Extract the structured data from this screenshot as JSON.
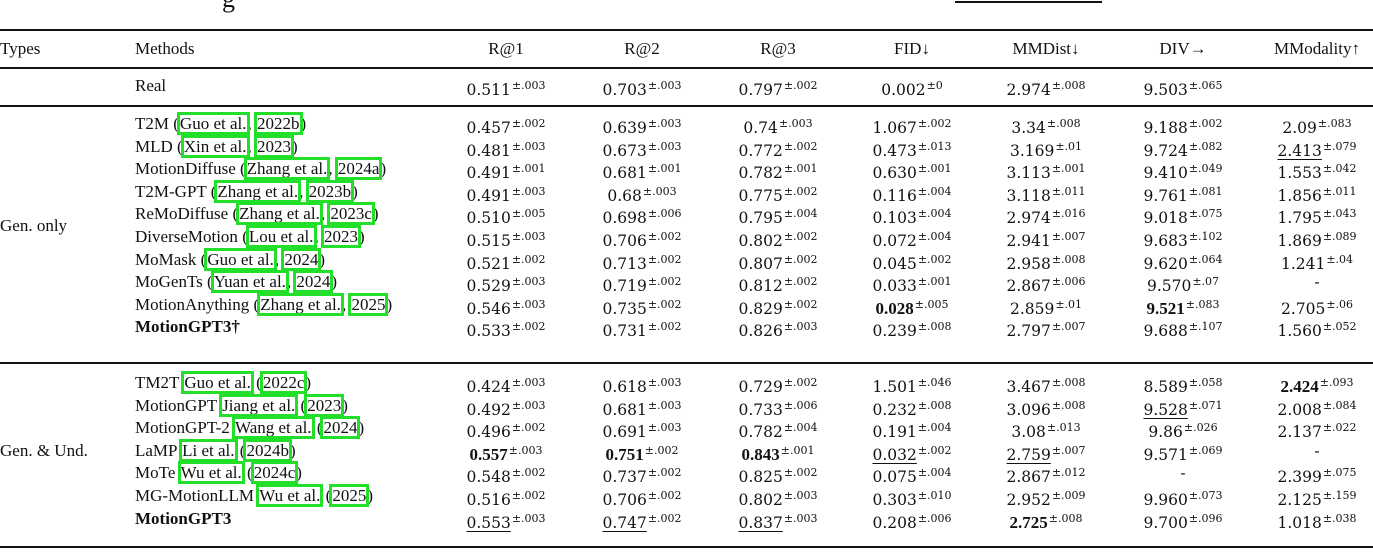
{
  "caption_fragment": "g",
  "columns": {
    "types": "Types",
    "methods": "Methods",
    "metrics": [
      "R@1",
      "R@2",
      "R@3",
      "FID↓",
      "MMDist↓",
      "DIV→",
      "MModality↑"
    ]
  },
  "real_row": {
    "method": "Real",
    "values": [
      {
        "v": "0.511",
        "pm": "±.003"
      },
      {
        "v": "0.703",
        "pm": "±.003"
      },
      {
        "v": "0.797",
        "pm": "±.002"
      },
      {
        "v": "0.002",
        "pm": "±0"
      },
      {
        "v": "2.974",
        "pm": "±.008"
      },
      {
        "v": "9.503",
        "pm": "±.065"
      },
      {
        "v": "",
        "pm": ""
      }
    ]
  },
  "groups": [
    {
      "type": "Gen. only",
      "rows": [
        {
          "name": "T2M",
          "open": " (",
          "author": "Guo et al.",
          "sep": ", ",
          "year": "2022b",
          "close": ")",
          "values": [
            {
              "v": "0.457",
              "pm": "±.002"
            },
            {
              "v": "0.639",
              "pm": "±.003"
            },
            {
              "v": "0.74",
              "pm": "±.003"
            },
            {
              "v": "1.067",
              "pm": "±.002"
            },
            {
              "v": "3.34",
              "pm": "±.008"
            },
            {
              "v": "9.188",
              "pm": "±.002"
            },
            {
              "v": "2.09",
              "pm": "±.083"
            }
          ]
        },
        {
          "name": "MLD",
          "open": " (",
          "author": "Xin et al.",
          "sep": ", ",
          "year": "2023",
          "close": ")",
          "values": [
            {
              "v": "0.481",
              "pm": "±.003"
            },
            {
              "v": "0.673",
              "pm": "±.003"
            },
            {
              "v": "0.772",
              "pm": "±.002"
            },
            {
              "v": "0.473",
              "pm": "±.013"
            },
            {
              "v": "3.169",
              "pm": "±.01"
            },
            {
              "v": "9.724",
              "pm": "±.082"
            },
            {
              "v": "2.413",
              "pm": "±.079",
              "style": "under"
            }
          ]
        },
        {
          "name": "MotionDiffuse",
          "open": " (",
          "author": "Zhang et al.",
          "sep": ", ",
          "year": "2024a",
          "close": ")",
          "values": [
            {
              "v": "0.491",
              "pm": "±.001"
            },
            {
              "v": "0.681",
              "pm": "±.001"
            },
            {
              "v": "0.782",
              "pm": "±.001"
            },
            {
              "v": "0.630",
              "pm": "±.001"
            },
            {
              "v": "3.113",
              "pm": "±.001"
            },
            {
              "v": "9.410",
              "pm": "±.049"
            },
            {
              "v": "1.553",
              "pm": "±.042"
            }
          ]
        },
        {
          "name": "T2M-GPT",
          "open": " (",
          "author": "Zhang et al.",
          "sep": ", ",
          "year": "2023b",
          "close": ")",
          "values": [
            {
              "v": "0.491",
              "pm": "±.003"
            },
            {
              "v": "0.68",
              "pm": "±.003"
            },
            {
              "v": "0.775",
              "pm": "±.002"
            },
            {
              "v": "0.116",
              "pm": "±.004"
            },
            {
              "v": "3.118",
              "pm": "±.011"
            },
            {
              "v": "9.761",
              "pm": "±.081"
            },
            {
              "v": "1.856",
              "pm": "±.011"
            }
          ]
        },
        {
          "name": "ReMoDiffuse",
          "open": " (",
          "author": "Zhang et al.",
          "sep": ", ",
          "year": "2023c",
          "close": ")",
          "values": [
            {
              "v": "0.510",
              "pm": "±.005"
            },
            {
              "v": "0.698",
              "pm": "±.006"
            },
            {
              "v": "0.795",
              "pm": "±.004"
            },
            {
              "v": "0.103",
              "pm": "±.004"
            },
            {
              "v": "2.974",
              "pm": "±.016"
            },
            {
              "v": "9.018",
              "pm": "±.075"
            },
            {
              "v": "1.795",
              "pm": "±.043"
            }
          ]
        },
        {
          "name": "DiverseMotion",
          "open": " (",
          "author": "Lou et al.",
          "sep": ", ",
          "year": "2023",
          "close": ")",
          "values": [
            {
              "v": "0.515",
              "pm": "±.003"
            },
            {
              "v": "0.706",
              "pm": "±.002"
            },
            {
              "v": "0.802",
              "pm": "±.002"
            },
            {
              "v": "0.072",
              "pm": "±.004"
            },
            {
              "v": "2.941",
              "pm": "±.007"
            },
            {
              "v": "9.683",
              "pm": "±.102"
            },
            {
              "v": "1.869",
              "pm": "±.089"
            }
          ]
        },
        {
          "name": "MoMask",
          "open": " (",
          "author": "Guo et al.",
          "sep": ", ",
          "year": "2024",
          "close": ")",
          "values": [
            {
              "v": "0.521",
              "pm": "±.002"
            },
            {
              "v": "0.713",
              "pm": "±.002"
            },
            {
              "v": "0.807",
              "pm": "±.002"
            },
            {
              "v": "0.045",
              "pm": "±.002"
            },
            {
              "v": "2.958",
              "pm": "±.008"
            },
            {
              "v": "9.620",
              "pm": "±.064"
            },
            {
              "v": "1.241",
              "pm": "±.04"
            }
          ]
        },
        {
          "name": "MoGenTs",
          "open": " (",
          "author": "Yuan et al.",
          "sep": ", ",
          "year": "2024",
          "close": ")",
          "values": [
            {
              "v": "0.529",
              "pm": "±.003"
            },
            {
              "v": "0.719",
              "pm": "±.002"
            },
            {
              "v": "0.812",
              "pm": "±.002"
            },
            {
              "v": "0.033",
              "pm": "±.001"
            },
            {
              "v": "2.867",
              "pm": "±.006"
            },
            {
              "v": "9.570",
              "pm": "±.07"
            },
            {
              "v": "-",
              "pm": ""
            }
          ]
        },
        {
          "name": "MotionAnything",
          "open": " (",
          "author": "Zhang et al.",
          "sep": ", ",
          "year": "2025",
          "close": ")",
          "values": [
            {
              "v": "0.546",
              "pm": "±.003"
            },
            {
              "v": "0.735",
              "pm": "±.002"
            },
            {
              "v": "0.829",
              "pm": "±.002"
            },
            {
              "v": "0.028",
              "pm": "±.005",
              "style": "bold"
            },
            {
              "v": "2.859",
              "pm": "±.01"
            },
            {
              "v": "9.521",
              "pm": "±.083",
              "style": "bold"
            },
            {
              "v": "2.705",
              "pm": "±.06"
            }
          ]
        },
        {
          "name": "MotionGPT3†",
          "bold": true,
          "open": "",
          "author": "",
          "sep": "",
          "year": "",
          "close": "",
          "values": [
            {
              "v": "0.533",
              "pm": "±.002"
            },
            {
              "v": "0.731",
              "pm": "±.002"
            },
            {
              "v": "0.826",
              "pm": "±.003"
            },
            {
              "v": "0.239",
              "pm": "±.008"
            },
            {
              "v": "2.797",
              "pm": "±.007"
            },
            {
              "v": "9.688",
              "pm": "±.107"
            },
            {
              "v": "1.560",
              "pm": "±.052"
            }
          ]
        }
      ]
    },
    {
      "type": "Gen. & Und.",
      "rows": [
        {
          "name": "TM2T",
          "open": " ",
          "author": "Guo et al.",
          "sep": " (",
          "year": "2022c",
          "close": ")",
          "values": [
            {
              "v": "0.424",
              "pm": "±.003"
            },
            {
              "v": "0.618",
              "pm": "±.003"
            },
            {
              "v": "0.729",
              "pm": "±.002"
            },
            {
              "v": "1.501",
              "pm": "±.046"
            },
            {
              "v": "3.467",
              "pm": "±.008"
            },
            {
              "v": "8.589",
              "pm": "±.058"
            },
            {
              "v": "2.424",
              "pm": "±.093",
              "style": "bold"
            }
          ]
        },
        {
          "name": "MotionGPT",
          "open": " ",
          "author": "Jiang et al.",
          "sep": " (",
          "year": "2023",
          "close": ")",
          "values": [
            {
              "v": "0.492",
              "pm": "±.003"
            },
            {
              "v": "0.681",
              "pm": "±.003"
            },
            {
              "v": "0.733",
              "pm": "±.006"
            },
            {
              "v": "0.232",
              "pm": "±.008"
            },
            {
              "v": "3.096",
              "pm": "±.008"
            },
            {
              "v": "9.528",
              "pm": "±.071",
              "style": "under"
            },
            {
              "v": "2.008",
              "pm": "±.084"
            }
          ]
        },
        {
          "name": "MotionGPT-2",
          "open": " ",
          "author": "Wang et al.",
          "sep": " (",
          "year": "2024",
          "close": ")",
          "values": [
            {
              "v": "0.496",
              "pm": "±.002"
            },
            {
              "v": "0.691",
              "pm": "±.003"
            },
            {
              "v": "0.782",
              "pm": "±.004"
            },
            {
              "v": "0.191",
              "pm": "±.004"
            },
            {
              "v": "3.08",
              "pm": "±.013"
            },
            {
              "v": "9.86",
              "pm": "±.026"
            },
            {
              "v": "2.137",
              "pm": "±.022"
            }
          ]
        },
        {
          "name": "LaMP",
          "open": " ",
          "author": "Li et al.",
          "sep": " (",
          "year": "2024b",
          "close": ")",
          "values": [
            {
              "v": "0.557",
              "pm": "±.003",
              "style": "bold"
            },
            {
              "v": "0.751",
              "pm": "±.002",
              "style": "bold"
            },
            {
              "v": "0.843",
              "pm": "±.001",
              "style": "bold"
            },
            {
              "v": "0.032",
              "pm": "±.002",
              "style": "under"
            },
            {
              "v": "2.759",
              "pm": "±.007",
              "style": "under"
            },
            {
              "v": "9.571",
              "pm": "±.069"
            },
            {
              "v": "-",
              "pm": ""
            }
          ]
        },
        {
          "name": "MoTe",
          "open": " ",
          "author": "Wu et al.",
          "sep": " (",
          "year": "2024c",
          "close": ")",
          "values": [
            {
              "v": "0.548",
              "pm": "±.002"
            },
            {
              "v": "0.737",
              "pm": "±.002"
            },
            {
              "v": "0.825",
              "pm": "±.002"
            },
            {
              "v": "0.075",
              "pm": "±.004"
            },
            {
              "v": "2.867",
              "pm": "±.012"
            },
            {
              "v": "-",
              "pm": ""
            },
            {
              "v": "2.399",
              "pm": "±.075"
            }
          ]
        },
        {
          "name": "MG-MotionLLM",
          "open": " ",
          "author": "Wu et al.",
          "sep": " (",
          "year": "2025",
          "close": ")",
          "values": [
            {
              "v": "0.516",
              "pm": "±.002"
            },
            {
              "v": "0.706",
              "pm": "±.002"
            },
            {
              "v": "0.802",
              "pm": "±.003"
            },
            {
              "v": "0.303",
              "pm": "±.010"
            },
            {
              "v": "2.952",
              "pm": "±.009"
            },
            {
              "v": "9.960",
              "pm": "±.073"
            },
            {
              "v": "2.125",
              "pm": "±.159"
            }
          ]
        },
        {
          "name": "MotionGPT3",
          "bold": true,
          "open": "",
          "author": "",
          "sep": "",
          "year": "",
          "close": "",
          "values": [
            {
              "v": "0.553",
              "pm": "±.003",
              "style": "under"
            },
            {
              "v": "0.747",
              "pm": "±.002",
              "style": "under"
            },
            {
              "v": "0.837",
              "pm": "±.003",
              "style": "under"
            },
            {
              "v": "0.208",
              "pm": "±.006"
            },
            {
              "v": "2.725",
              "pm": "±.008",
              "style": "bold"
            },
            {
              "v": "9.700",
              "pm": "±.096"
            },
            {
              "v": "1.018",
              "pm": "±.038"
            }
          ]
        }
      ]
    }
  ]
}
